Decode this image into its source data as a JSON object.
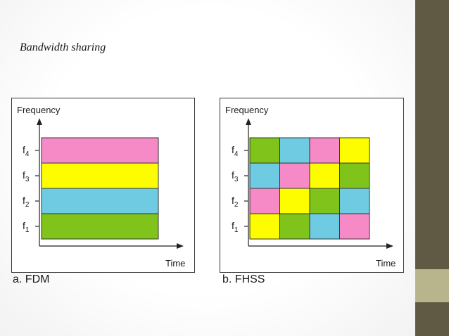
{
  "slide": {
    "title": "Bandwidth sharing"
  },
  "colors": {
    "pink": "#f58ac6",
    "yellow": "#fdfd00",
    "blue": "#6ecbe1",
    "green": "#80c41b",
    "sidebar": "#605a45",
    "sidebar_accent": "#b8b48c"
  },
  "fdm": {
    "y_label": "Frequency",
    "x_label": "Time",
    "caption": "a. FDM",
    "bands": [
      {
        "freq": "f4",
        "color": "pink"
      },
      {
        "freq": "f3",
        "color": "yellow"
      },
      {
        "freq": "f2",
        "color": "blue"
      },
      {
        "freq": "f1",
        "color": "green"
      }
    ]
  },
  "fhss": {
    "y_label": "Frequency",
    "x_label": "Time",
    "caption": "b. FHSS",
    "freqs": [
      "f4",
      "f3",
      "f2",
      "f1"
    ],
    "grid": [
      [
        "green",
        "blue",
        "pink",
        "yellow"
      ],
      [
        "blue",
        "pink",
        "yellow",
        "green"
      ],
      [
        "pink",
        "yellow",
        "green",
        "blue"
      ],
      [
        "yellow",
        "green",
        "blue",
        "pink"
      ]
    ]
  }
}
